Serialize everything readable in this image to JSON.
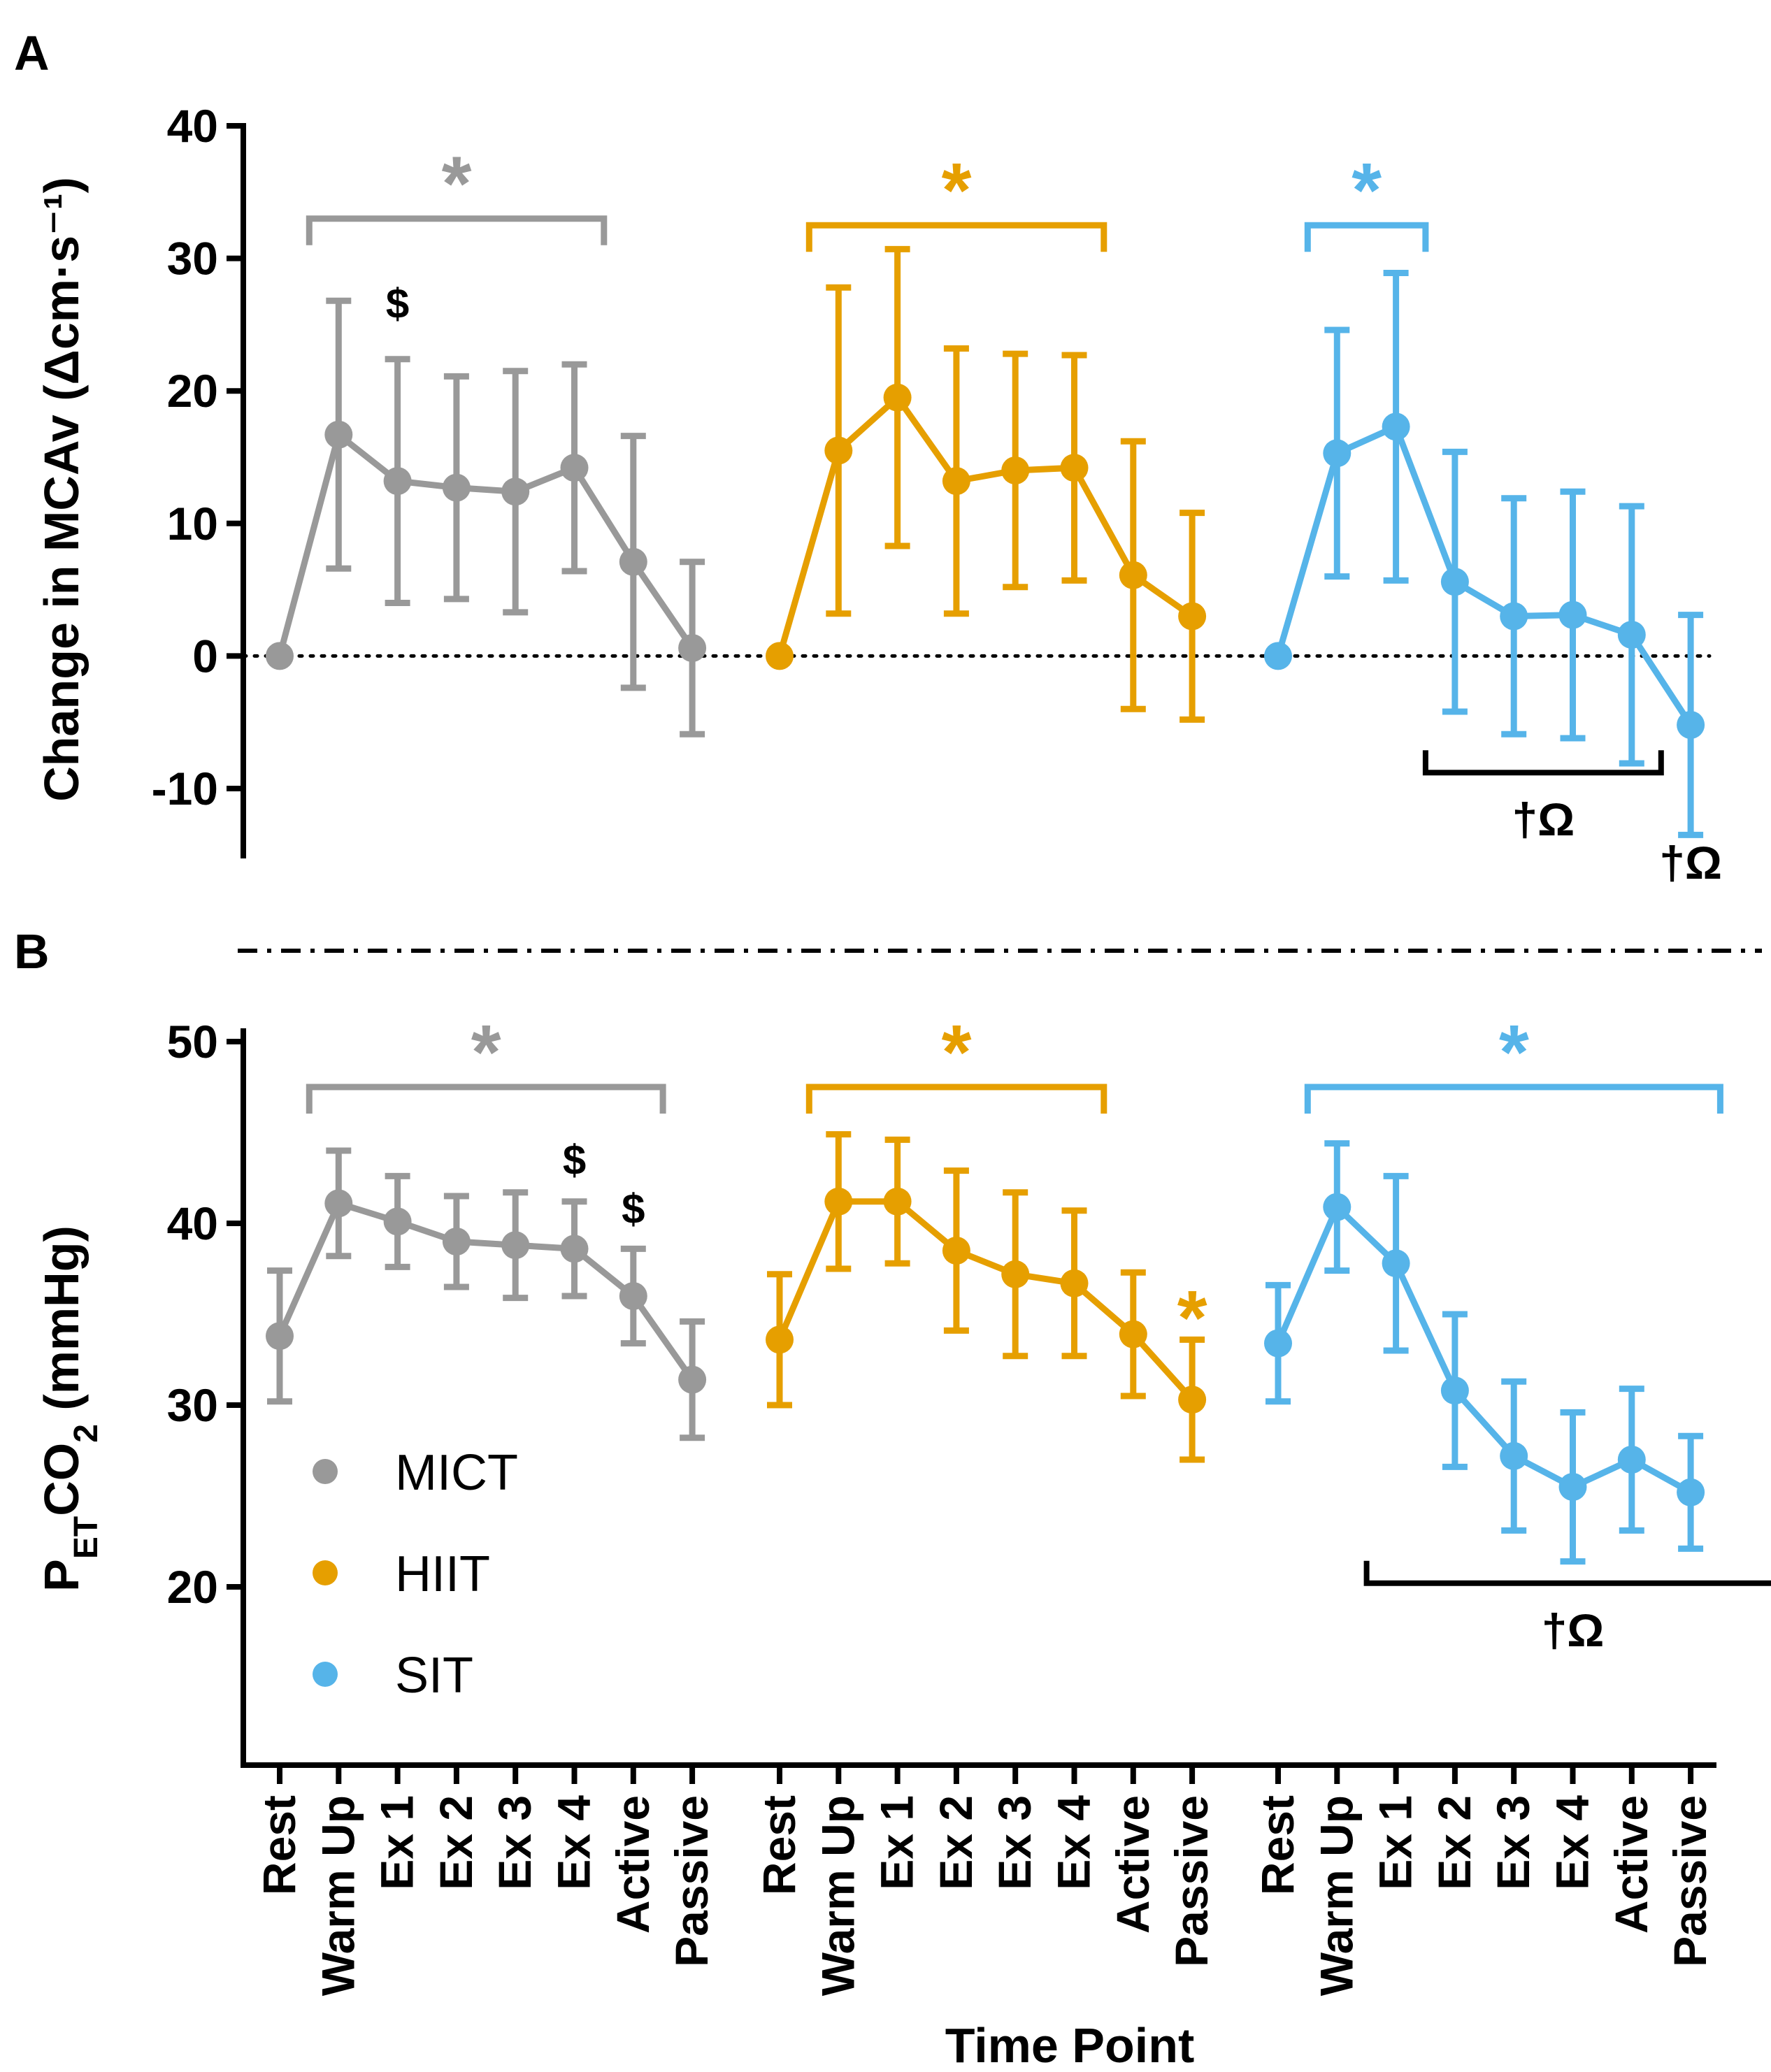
{
  "chart_data": {
    "type": "line",
    "x_title": "Time Point",
    "categories": [
      "Rest",
      "Warm Up",
      "Ex 1",
      "Ex 2",
      "Ex 3",
      "Ex 4",
      "Active",
      "Passive"
    ],
    "groups": [
      {
        "name": "MICT",
        "color": "#999999"
      },
      {
        "name": "HIIT",
        "color": "#e69f00"
      },
      {
        "name": "SIT",
        "color": "#56b4e9"
      }
    ],
    "legend": {
      "placement": "lower-left of panel B",
      "entries": [
        "MICT",
        "HIIT",
        "SIT"
      ]
    },
    "panels": [
      {
        "letter": "A",
        "ylabel": "Change in MCAv (Δcm·s⁻¹)",
        "ylim": [
          -15,
          40
        ],
        "yticks": [
          -10,
          0,
          10,
          20,
          30,
          40
        ],
        "reference_line": 0,
        "series": [
          {
            "name": "MICT",
            "mean": [
              0,
              16.7,
              13.2,
              12.7,
              12.4,
              14.2,
              7.1,
              0.6
            ],
            "sd": [
              0,
              10.1,
              9.2,
              8.4,
              9.1,
              7.8,
              9.5,
              6.5
            ]
          },
          {
            "name": "HIIT",
            "mean": [
              0,
              15.5,
              19.5,
              13.2,
              14.0,
              14.2,
              6.1,
              3.0
            ],
            "sd": [
              0,
              12.3,
              11.2,
              10.0,
              8.8,
              8.5,
              10.1,
              7.8
            ]
          },
          {
            "name": "SIT",
            "mean": [
              0,
              15.3,
              17.3,
              5.6,
              3.0,
              3.1,
              1.6,
              -5.2
            ],
            "sd": [
              0,
              9.3,
              11.6,
              9.8,
              8.9,
              9.3,
              9.7,
              8.3
            ]
          }
        ],
        "annotations": [
          {
            "group": "MICT",
            "text": "*",
            "type": "bracket",
            "from": 1,
            "to": 6,
            "y": 33
          },
          {
            "group": "HIIT",
            "text": "*",
            "type": "bracket",
            "from": 1,
            "to": 6,
            "y": 32.5
          },
          {
            "group": "SIT",
            "text": "*",
            "type": "bracket",
            "from": 1,
            "to": 3,
            "y": 32.5
          },
          {
            "group": "MICT",
            "text": "$",
            "type": "label",
            "at": 2,
            "y": 25.5
          },
          {
            "group": "SIT",
            "text": "†Ω",
            "type": "underbracket",
            "from": 3,
            "to": 6,
            "y": -8.8
          },
          {
            "group": "SIT",
            "text": "†Ω",
            "type": "label",
            "at": 7,
            "y": -16.8
          }
        ]
      },
      {
        "letter": "B",
        "ylabel": "PETCO2 (mmHg)",
        "ylabel_parts": {
          "main": "P",
          "sub1": "ET",
          "mid": "CO",
          "sub2": "2",
          "tail": " (mmHg)"
        },
        "ylim": [
          10,
          50
        ],
        "yticks": [
          20,
          30,
          40,
          50
        ],
        "series": [
          {
            "name": "MICT",
            "mean": [
              33.8,
              41.1,
              40.1,
              39.0,
              38.8,
              38.6,
              36.0,
              31.4
            ],
            "sd": [
              3.6,
              2.9,
              2.5,
              2.5,
              2.9,
              2.6,
              2.6,
              3.2
            ]
          },
          {
            "name": "HIIT",
            "mean": [
              33.6,
              41.2,
              41.2,
              38.5,
              37.2,
              36.7,
              33.9,
              30.3
            ],
            "sd": [
              3.6,
              3.7,
              3.4,
              4.4,
              4.5,
              4.0,
              3.4,
              3.3
            ]
          },
          {
            "name": "SIT",
            "mean": [
              33.4,
              40.9,
              37.8,
              30.8,
              27.2,
              25.5,
              27.0,
              25.2
            ],
            "sd": [
              3.2,
              3.5,
              4.8,
              4.2,
              4.1,
              4.1,
              3.9,
              3.1
            ]
          }
        ],
        "annotations": [
          {
            "group": "MICT",
            "text": "*",
            "type": "bracket",
            "from": 1,
            "to": 7,
            "y": 47.5
          },
          {
            "group": "HIIT",
            "text": "*",
            "type": "bracket",
            "from": 1,
            "to": 6,
            "y": 47.5
          },
          {
            "group": "SIT",
            "text": "*",
            "type": "bracket",
            "from": 1,
            "to": 8,
            "y": 47.5
          },
          {
            "group": "MICT",
            "text": "$",
            "type": "label",
            "at": 5,
            "y": 42.7
          },
          {
            "group": "MICT",
            "text": "$",
            "type": "label",
            "at": 6,
            "y": 40.0
          },
          {
            "group": "HIIT",
            "text": "*",
            "type": "label-large",
            "at": 7,
            "y": 34.5
          },
          {
            "group": "SIT",
            "text": "†Ω",
            "type": "underbracket",
            "from": 2,
            "to": 8,
            "y": 20.2
          }
        ]
      }
    ]
  }
}
